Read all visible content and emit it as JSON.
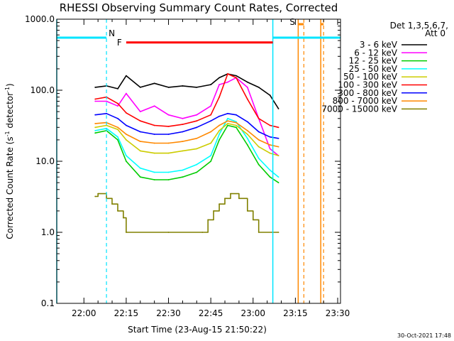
{
  "chart_data": {
    "type": "line",
    "title": "RHESSI Observing Summary Count Rates, Corrected",
    "xlabel": "Start Time (23-Aug-15 21:50:22)",
    "ylabel": "Corrected Count Rate (s⁻¹ detector⁻¹)",
    "ylabel_parts": {
      "main": "Corrected Count Rate (s",
      "sup1": "-1",
      "mid": " detector",
      "sup2": "-1",
      "end": ")"
    },
    "yscale": "log",
    "xlim": [
      "21:50:22",
      "23:31"
    ],
    "ylim": [
      0.1,
      1000
    ],
    "x_ticks": [
      "22:00",
      "22:15",
      "22:30",
      "22:45",
      "23:00",
      "23:15",
      "23:30"
    ],
    "y_ticks": [
      "0.1",
      "1.0",
      "10.0",
      "100.0",
      "1000.0"
    ],
    "legend": {
      "header_line1": "Det 1,3,5,6,7,",
      "header_line2": "Att 0",
      "placement": "right"
    },
    "series": [
      {
        "name": "3 - 6 keV",
        "color": "#000000",
        "x": [
          "22:04",
          "22:08",
          "22:12",
          "22:15",
          "22:20",
          "22:25",
          "22:30",
          "22:35",
          "22:40",
          "22:45",
          "22:48",
          "22:51",
          "22:54",
          "22:58",
          "23:02",
          "23:06",
          "23:09"
        ],
        "y": [
          110,
          115,
          105,
          160,
          110,
          125,
          110,
          115,
          110,
          120,
          150,
          170,
          160,
          130,
          110,
          85,
          55
        ]
      },
      {
        "name": "6 - 12 keV",
        "color": "#ff00ff",
        "x": [
          "22:04",
          "22:08",
          "22:12",
          "22:15",
          "22:20",
          "22:25",
          "22:30",
          "22:35",
          "22:40",
          "22:45",
          "22:48",
          "22:51",
          "22:54",
          "22:58",
          "23:02",
          "23:06",
          "23:09"
        ],
        "y": [
          70,
          70,
          60,
          90,
          50,
          60,
          45,
          40,
          45,
          60,
          120,
          130,
          150,
          110,
          40,
          15,
          12
        ]
      },
      {
        "name": "12 - 25 keV",
        "color": "#00cc00",
        "x": [
          "22:04",
          "22:08",
          "22:12",
          "22:15",
          "22:20",
          "22:25",
          "22:30",
          "22:35",
          "22:40",
          "22:45",
          "22:48",
          "22:51",
          "22:54",
          "22:58",
          "23:02",
          "23:06",
          "23:09"
        ],
        "y": [
          25,
          27,
          20,
          10,
          6,
          5.5,
          5.5,
          6,
          7,
          10,
          20,
          32,
          30,
          17,
          9,
          6,
          5
        ]
      },
      {
        "name": "25 - 50 keV",
        "color": "#00ffff",
        "x": [
          "22:04",
          "22:08",
          "22:12",
          "22:15",
          "22:20",
          "22:25",
          "22:30",
          "22:35",
          "22:40",
          "22:45",
          "22:48",
          "22:51",
          "22:54",
          "22:58",
          "23:02",
          "23:06",
          "23:09"
        ],
        "y": [
          27,
          29,
          22,
          12,
          8,
          7,
          7,
          7.5,
          9,
          12,
          24,
          40,
          36,
          21,
          11,
          7.5,
          6
        ]
      },
      {
        "name": "50 - 100 keV",
        "color": "#cccc00",
        "x": [
          "22:04",
          "22:08",
          "22:12",
          "22:15",
          "22:20",
          "22:25",
          "22:30",
          "22:35",
          "22:40",
          "22:45",
          "22:48",
          "22:51",
          "22:54",
          "22:58",
          "23:02",
          "23:06",
          "23:09"
        ],
        "y": [
          30,
          32,
          28,
          20,
          14,
          13,
          13,
          14,
          15,
          18,
          27,
          34,
          32,
          24,
          16,
          13,
          12
        ]
      },
      {
        "name": "100 - 300 keV",
        "color": "#ff0000",
        "x": [
          "22:04",
          "22:08",
          "22:12",
          "22:15",
          "22:20",
          "22:25",
          "22:30",
          "22:35",
          "22:40",
          "22:45",
          "22:48",
          "22:51",
          "22:54",
          "22:58",
          "23:02",
          "23:06",
          "23:09"
        ],
        "y": [
          75,
          80,
          65,
          48,
          37,
          32,
          31,
          33,
          37,
          45,
          80,
          170,
          150,
          75,
          40,
          32,
          30
        ]
      },
      {
        "name": "300 - 800 keV",
        "color": "#0000ff",
        "x": [
          "22:04",
          "22:08",
          "22:12",
          "22:15",
          "22:20",
          "22:25",
          "22:30",
          "22:35",
          "22:40",
          "22:45",
          "22:48",
          "22:51",
          "22:54",
          "22:58",
          "23:02",
          "23:06",
          "23:09"
        ],
        "y": [
          45,
          47,
          40,
          32,
          26,
          24,
          24,
          26,
          30,
          37,
          43,
          47,
          45,
          36,
          26,
          22,
          21
        ]
      },
      {
        "name": "800 - 7000 keV",
        "color": "#ff8800",
        "x": [
          "22:04",
          "22:08",
          "22:12",
          "22:15",
          "22:20",
          "22:25",
          "22:30",
          "22:35",
          "22:40",
          "22:45",
          "22:48",
          "22:51",
          "22:54",
          "22:58",
          "23:02",
          "23:06",
          "23:09"
        ],
        "y": [
          34,
          35,
          30,
          24,
          19,
          18,
          18,
          19,
          21,
          26,
          32,
          37,
          35,
          27,
          20,
          17,
          16
        ]
      },
      {
        "name": "7000 - 15000 keV",
        "color": "#808000",
        "x": [
          "22:04",
          "22:05",
          "22:08",
          "22:10",
          "22:12",
          "22:14",
          "22:15",
          "22:30",
          "22:42",
          "22:44",
          "22:46",
          "22:48",
          "22:50",
          "22:52",
          "22:55",
          "22:58",
          "23:00",
          "23:02",
          "23:09"
        ],
        "y": [
          3.2,
          3.5,
          3,
          2.5,
          2,
          1.6,
          1,
          1,
          1,
          1.5,
          2,
          2.5,
          3,
          3.5,
          3,
          2,
          1.5,
          1,
          1
        ]
      }
    ],
    "markers": {
      "cyan_solid_vlines": [
        "21:50:22",
        "23:07"
      ],
      "cyan_dashed_vlines": [
        "22:08"
      ],
      "orange_solid_vlines": [
        "23:16",
        "23:24"
      ],
      "orange_dashed_vlines": [
        "23:18",
        "23:25"
      ],
      "night_label": "N",
      "flare_label": "F",
      "saa_label": "S",
      "night_bars": [
        [
          "21:50:22",
          "22:08"
        ],
        [
          "23:07",
          "23:31"
        ]
      ],
      "flare_bar": [
        "22:15",
        "23:07"
      ],
      "saa_bars": [
        [
          "23:16",
          "23:18"
        ],
        [
          "23:24",
          "23:25"
        ]
      ],
      "night_level": 550,
      "flare_level": 470,
      "saa_level": 850
    }
  },
  "footer": {
    "date_stamp": "30-Oct-2021 17:48"
  }
}
